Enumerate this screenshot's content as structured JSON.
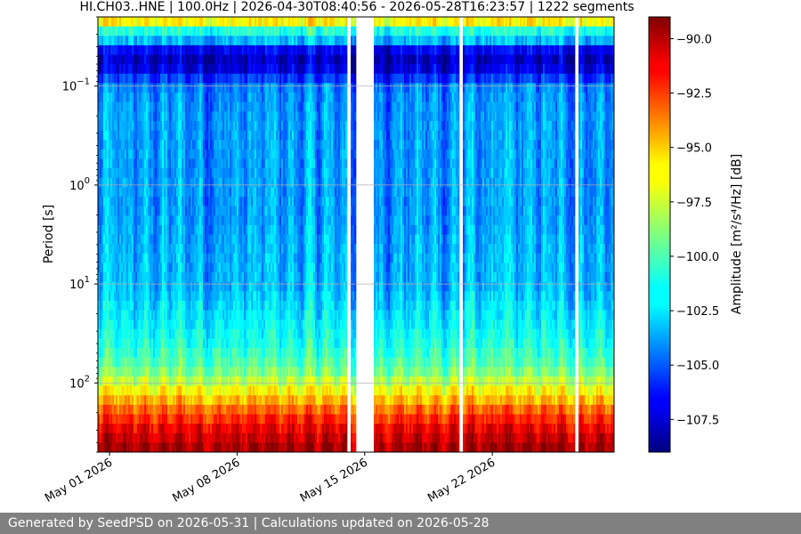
{
  "chart_data": {
    "type": "heatmap",
    "title": "HI.CH03..HNE | 100.0Hz | 2026-04-30T08:40:56 - 2026-05-28T16:23:57 | 1222 segments",
    "xlabel": "",
    "ylabel": "Period [s]",
    "y_scale": "log",
    "y_inverted": true,
    "xlim": [
      "2026-04-30T08:40:56",
      "2026-05-28T16:23:57"
    ],
    "ylim": [
      0.02,
      500
    ],
    "x_ticks": [
      {
        "value": "2026-05-01",
        "label": "May 01 2026"
      },
      {
        "value": "2026-05-08",
        "label": "May 08 2026"
      },
      {
        "value": "2026-05-15",
        "label": "May 15 2026"
      },
      {
        "value": "2026-05-22",
        "label": "May 22 2026"
      }
    ],
    "y_ticks": [
      {
        "value": 0.1,
        "base": "10",
        "exp": "−1"
      },
      {
        "value": 1,
        "base": "10",
        "exp": "0"
      },
      {
        "value": 10,
        "base": "10",
        "exp": "1"
      },
      {
        "value": 100,
        "base": "10",
        "exp": "2"
      }
    ],
    "grid": true,
    "colormap": "jet",
    "colorbar": {
      "label": "Amplitude [m²/s⁴/Hz] [dB]",
      "range": [
        -109,
        -89
      ],
      "ticks": [
        "−107.5",
        "−105.0",
        "−102.5",
        "−100.0",
        "−97.5",
        "−95.0",
        "−92.5",
        "−90.0"
      ],
      "tick_values": [
        -107.5,
        -105.0,
        -102.5,
        -100.0,
        -97.5,
        -95.0,
        -92.5,
        -90.0
      ]
    },
    "period_profile": {
      "periods": [
        0.02,
        0.025,
        0.035,
        0.04,
        0.05,
        0.07,
        0.1,
        0.2,
        0.5,
        1,
        2,
        5,
        10,
        20,
        40,
        60,
        80,
        110,
        150,
        200,
        300,
        500
      ],
      "amplitude_db": [
        -93,
        -100,
        -103,
        -106,
        -108,
        -107,
        -104,
        -103.5,
        -103.5,
        -103.5,
        -103.5,
        -103,
        -103,
        -102,
        -101,
        -100,
        -99,
        -97,
        -95,
        -93,
        -91,
        -89.5
      ]
    },
    "data_gaps": [
      [
        "2026-05-14T01:00",
        "2026-05-14T05:00"
      ],
      [
        "2026-05-14T12:00",
        "2026-05-15T11:00"
      ],
      [
        "2026-05-20T05:00",
        "2026-05-20T08:00"
      ],
      [
        "2026-05-26T14:00",
        "2026-05-26T17:00"
      ]
    ]
  },
  "footer": {
    "text": "Generated by SeedPSD on 2026-05-31 | Calculations updated on 2026-05-28"
  }
}
